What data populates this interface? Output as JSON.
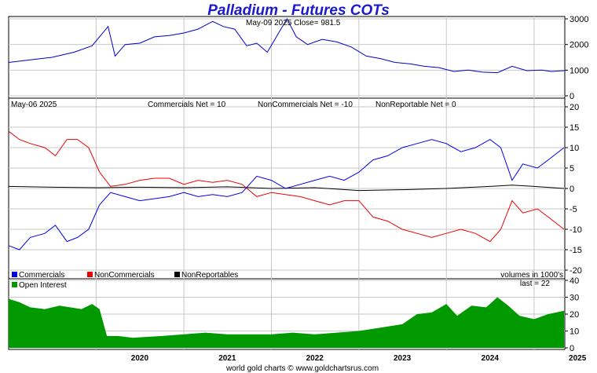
{
  "header": {
    "title": "Palladium - Futures COTs",
    "price_caption": "May-09  2025   Close= 981.5",
    "cot_date": "May-06  2025",
    "commercials_net": "Commercials Net = 10",
    "noncommercials_net": "NonCommercials Net = -10",
    "nonreportable_net": "NonReportable Net = 0",
    "volumes_note": "volumes in 1000's",
    "oi_last": "last = 22",
    "footer": "world gold charts © www.goldchartsrus.com"
  },
  "colors": {
    "price_line": "#0000cc",
    "commercials": "#0000ee",
    "noncommercials": "#ee0000",
    "nonreportables": "#000000",
    "open_interest_fill": "#009900",
    "grid": "#c8c8c8"
  },
  "chart_data": [
    {
      "type": "line",
      "x_range": [
        "2019-01-01",
        "2025-05-09"
      ],
      "ylim": [
        0,
        3000
      ],
      "yticks": [
        "0",
        "1000",
        "2000",
        "3000"
      ],
      "grid": true,
      "series": [
        {
          "points": [
            [
              "2019-01-01",
              1300
            ],
            [
              "2019-04-01",
              1400
            ],
            [
              "2019-07-01",
              1500
            ],
            [
              "2019-10-01",
              1700
            ],
            [
              "2019-12-15",
              1950
            ],
            [
              "2020-02-20",
              2700
            ],
            [
              "2020-03-20",
              1550
            ],
            [
              "2020-05-01",
              2000
            ],
            [
              "2020-07-01",
              2050
            ],
            [
              "2020-09-01",
              2300
            ],
            [
              "2020-11-01",
              2350
            ],
            [
              "2021-01-01",
              2450
            ],
            [
              "2021-03-01",
              2600
            ],
            [
              "2021-05-01",
              2900
            ],
            [
              "2021-06-15",
              2700
            ],
            [
              "2021-08-01",
              2600
            ],
            [
              "2021-09-20",
              1950
            ],
            [
              "2021-11-01",
              2050
            ],
            [
              "2021-12-15",
              1700
            ],
            [
              "2022-03-07",
              3000
            ],
            [
              "2022-04-15",
              2300
            ],
            [
              "2022-06-01",
              2000
            ],
            [
              "2022-08-01",
              2200
            ],
            [
              "2022-10-01",
              2100
            ],
            [
              "2022-12-01",
              1900
            ],
            [
              "2023-02-01",
              1550
            ],
            [
              "2023-04-01",
              1450
            ],
            [
              "2023-06-01",
              1300
            ],
            [
              "2023-08-01",
              1250
            ],
            [
              "2023-10-01",
              1150
            ],
            [
              "2023-12-01",
              1100
            ],
            [
              "2024-02-01",
              950
            ],
            [
              "2024-04-01",
              1000
            ],
            [
              "2024-06-01",
              920
            ],
            [
              "2024-08-01",
              900
            ],
            [
              "2024-10-01",
              1150
            ],
            [
              "2024-12-01",
              980
            ],
            [
              "2025-02-01",
              1000
            ],
            [
              "2025-03-15",
              950
            ],
            [
              "2025-05-09",
              981.5
            ]
          ]
        }
      ]
    },
    {
      "type": "line",
      "x_range": [
        "2019-01-01",
        "2025-05-09"
      ],
      "ylim": [
        -20,
        20
      ],
      "yticks": [
        "-20",
        "-15",
        "-10",
        "-5",
        "0",
        "5",
        "10",
        "15",
        "20"
      ],
      "grid": true,
      "legend_position": "bottom-left",
      "legend": [
        "Commercials",
        "NonCommercials",
        "NonReportables"
      ],
      "series": [
        {
          "name": "Commercials",
          "points": [
            [
              "2019-01-01",
              -14
            ],
            [
              "2019-02-15",
              -15
            ],
            [
              "2019-04-01",
              -12
            ],
            [
              "2019-06-01",
              -11
            ],
            [
              "2019-07-15",
              -9
            ],
            [
              "2019-09-01",
              -13
            ],
            [
              "2019-10-15",
              -12
            ],
            [
              "2019-12-01",
              -10
            ],
            [
              "2020-01-15",
              -4
            ],
            [
              "2020-03-01",
              -1
            ],
            [
              "2020-05-01",
              -2
            ],
            [
              "2020-07-01",
              -3
            ],
            [
              "2020-09-01",
              -2.5
            ],
            [
              "2020-11-01",
              -2
            ],
            [
              "2021-01-01",
              -1
            ],
            [
              "2021-03-01",
              -2
            ],
            [
              "2021-05-01",
              -1.5
            ],
            [
              "2021-07-01",
              -2
            ],
            [
              "2021-09-01",
              -1
            ],
            [
              "2021-11-01",
              3
            ],
            [
              "2022-01-01",
              2
            ],
            [
              "2022-03-01",
              0
            ],
            [
              "2022-05-01",
              1
            ],
            [
              "2022-07-01",
              2
            ],
            [
              "2022-09-01",
              3
            ],
            [
              "2022-11-01",
              2
            ],
            [
              "2023-01-01",
              4
            ],
            [
              "2023-03-01",
              7
            ],
            [
              "2023-05-01",
              8
            ],
            [
              "2023-07-01",
              10
            ],
            [
              "2023-09-01",
              11
            ],
            [
              "2023-11-01",
              12
            ],
            [
              "2024-01-01",
              11
            ],
            [
              "2024-03-01",
              9
            ],
            [
              "2024-05-01",
              10
            ],
            [
              "2024-07-01",
              12
            ],
            [
              "2024-08-15",
              10
            ],
            [
              "2024-10-01",
              2
            ],
            [
              "2024-11-15",
              6
            ],
            [
              "2025-01-15",
              5
            ],
            [
              "2025-03-01",
              7
            ],
            [
              "2025-05-06",
              10
            ]
          ]
        },
        {
          "name": "NonCommercials",
          "points": [
            [
              "2019-01-01",
              14
            ],
            [
              "2019-02-15",
              12
            ],
            [
              "2019-04-01",
              11
            ],
            [
              "2019-06-01",
              10
            ],
            [
              "2019-07-15",
              8
            ],
            [
              "2019-09-01",
              12
            ],
            [
              "2019-10-15",
              12
            ],
            [
              "2019-12-01",
              10
            ],
            [
              "2020-01-15",
              4
            ],
            [
              "2020-03-01",
              0.5
            ],
            [
              "2020-05-01",
              1
            ],
            [
              "2020-07-01",
              2
            ],
            [
              "2020-09-01",
              2.5
            ],
            [
              "2020-11-01",
              2.5
            ],
            [
              "2021-01-01",
              1
            ],
            [
              "2021-03-01",
              2
            ],
            [
              "2021-05-01",
              1.5
            ],
            [
              "2021-07-01",
              2
            ],
            [
              "2021-09-01",
              1
            ],
            [
              "2021-11-01",
              -2
            ],
            [
              "2022-01-01",
              -1
            ],
            [
              "2022-03-01",
              -1.5
            ],
            [
              "2022-05-01",
              -2
            ],
            [
              "2022-07-01",
              -3
            ],
            [
              "2022-09-01",
              -4
            ],
            [
              "2022-11-01",
              -3
            ],
            [
              "2023-01-01",
              -3
            ],
            [
              "2023-03-01",
              -7
            ],
            [
              "2023-05-01",
              -8
            ],
            [
              "2023-07-01",
              -10
            ],
            [
              "2023-09-01",
              -11
            ],
            [
              "2023-11-01",
              -12
            ],
            [
              "2024-01-01",
              -11
            ],
            [
              "2024-03-01",
              -10
            ],
            [
              "2024-05-01",
              -11
            ],
            [
              "2024-07-01",
              -13
            ],
            [
              "2024-08-15",
              -10
            ],
            [
              "2024-10-01",
              -3
            ],
            [
              "2024-11-15",
              -6
            ],
            [
              "2025-01-15",
              -5
            ],
            [
              "2025-03-01",
              -7
            ],
            [
              "2025-05-06",
              -10
            ]
          ]
        },
        {
          "name": "NonReportables",
          "points": [
            [
              "2019-01-01",
              0.5
            ],
            [
              "2019-07-01",
              0.3
            ],
            [
              "2020-01-01",
              0.2
            ],
            [
              "2020-07-01",
              0.3
            ],
            [
              "2021-01-01",
              0.2
            ],
            [
              "2021-07-01",
              0.4
            ],
            [
              "2022-01-01",
              0
            ],
            [
              "2022-07-01",
              0.2
            ],
            [
              "2023-01-01",
              -0.5
            ],
            [
              "2023-07-01",
              -0.3
            ],
            [
              "2024-01-01",
              0
            ],
            [
              "2024-07-01",
              0.5
            ],
            [
              "2024-10-01",
              0.8
            ],
            [
              "2025-01-01",
              0.5
            ],
            [
              "2025-05-06",
              0
            ]
          ]
        }
      ]
    },
    {
      "type": "area",
      "x_range": [
        "2019-01-01",
        "2025-05-09"
      ],
      "ylim": [
        0,
        40
      ],
      "yticks": [
        "0",
        "10",
        "20",
        "30",
        "40"
      ],
      "xticks": [
        "2020",
        "2021",
        "2022",
        "2023",
        "2024",
        "2025"
      ],
      "grid": true,
      "legend_position": "top-left",
      "legend": [
        "Open Interest"
      ],
      "series": [
        {
          "name": "Open Interest",
          "points": [
            [
              "2019-01-01",
              29
            ],
            [
              "2019-02-15",
              27
            ],
            [
              "2019-04-01",
              24
            ],
            [
              "2019-06-01",
              23
            ],
            [
              "2019-08-01",
              25
            ],
            [
              "2019-09-15",
              24
            ],
            [
              "2019-11-01",
              23
            ],
            [
              "2019-12-15",
              26
            ],
            [
              "2020-01-15",
              23
            ],
            [
              "2020-02-15",
              7
            ],
            [
              "2020-04-01",
              7
            ],
            [
              "2020-06-01",
              6
            ],
            [
              "2020-08-01",
              6.5
            ],
            [
              "2020-10-01",
              7
            ],
            [
              "2021-01-01",
              8
            ],
            [
              "2021-04-01",
              9
            ],
            [
              "2021-07-01",
              8
            ],
            [
              "2021-10-01",
              8
            ],
            [
              "2022-01-01",
              8
            ],
            [
              "2022-04-01",
              9
            ],
            [
              "2022-07-01",
              8
            ],
            [
              "2022-10-01",
              9
            ],
            [
              "2023-01-01",
              10
            ],
            [
              "2023-04-01",
              12
            ],
            [
              "2023-07-01",
              14
            ],
            [
              "2023-09-01",
              20
            ],
            [
              "2023-11-01",
              21
            ],
            [
              "2024-01-01",
              26
            ],
            [
              "2024-02-15",
              19
            ],
            [
              "2024-04-15",
              25
            ],
            [
              "2024-06-15",
              24
            ],
            [
              "2024-08-01",
              30
            ],
            [
              "2024-09-15",
              25
            ],
            [
              "2024-11-01",
              19
            ],
            [
              "2025-01-01",
              17
            ],
            [
              "2025-03-01",
              20
            ],
            [
              "2025-05-06",
              22
            ]
          ]
        }
      ]
    }
  ]
}
